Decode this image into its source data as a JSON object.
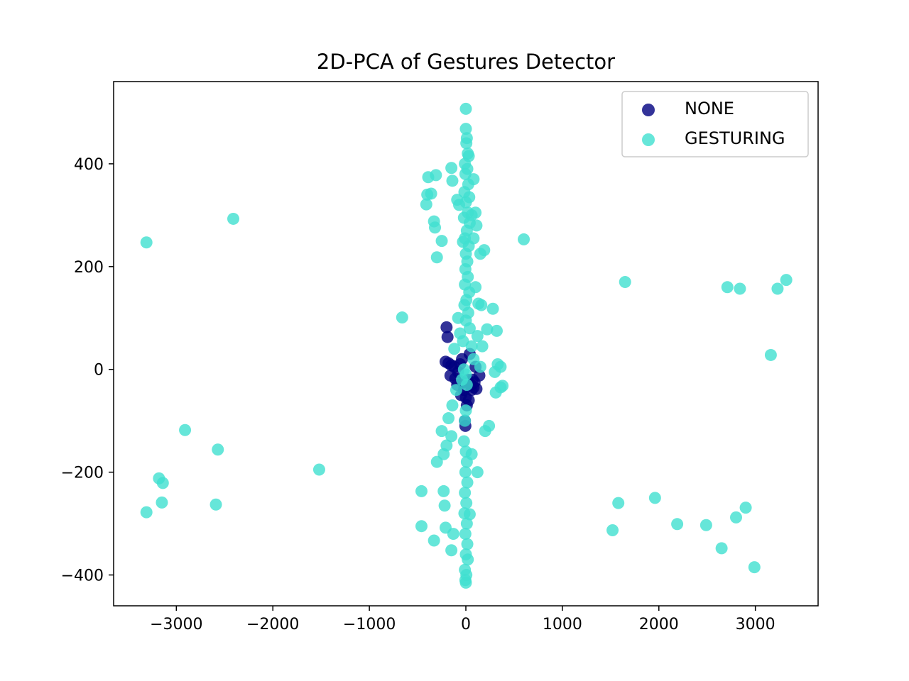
{
  "chart_data": {
    "type": "scatter",
    "title": "2D-PCA of Gestures Detector",
    "xlabel": "",
    "ylabel": "",
    "xlim": [
      -3650,
      3650
    ],
    "ylim": [
      -460,
      560
    ],
    "xticks": [
      -3000,
      -2000,
      -1000,
      0,
      1000,
      2000,
      3000
    ],
    "yticks": [
      -400,
      -200,
      0,
      200,
      400
    ],
    "xtick_labels": [
      "−3000",
      "−2000",
      "−1000",
      "0",
      "1000",
      "2000",
      "3000"
    ],
    "ytick_labels": [
      "−400",
      "−200",
      "0",
      "200",
      "400"
    ],
    "grid": false,
    "legend_position": "top-right",
    "series": [
      {
        "name": "NONE",
        "color": "#000080",
        "points": [
          [
            -200,
            82
          ],
          [
            -190,
            63
          ],
          [
            -210,
            15
          ],
          [
            -180,
            12
          ],
          [
            -150,
            8
          ],
          [
            -120,
            5
          ],
          [
            -160,
            -12
          ],
          [
            -110,
            -18
          ],
          [
            -80,
            -5
          ],
          [
            -60,
            10
          ],
          [
            -40,
            20
          ],
          [
            -30,
            -25
          ],
          [
            -20,
            -40
          ],
          [
            0,
            -55
          ],
          [
            30,
            -60
          ],
          [
            60,
            -40
          ],
          [
            80,
            -35
          ],
          [
            110,
            -38
          ],
          [
            140,
            -12
          ],
          [
            100,
            5
          ],
          [
            70,
            -20
          ],
          [
            -90,
            -30
          ],
          [
            -50,
            -50
          ],
          [
            20,
            -20
          ],
          [
            40,
            30
          ],
          [
            -10,
            -100
          ],
          [
            -5,
            -110
          ],
          [
            10,
            -70
          ],
          [
            50,
            -30
          ],
          [
            90,
            -25
          ]
        ]
      },
      {
        "name": "GESTURING",
        "color": "#40e0d0",
        "points": [
          [
            0,
            507
          ],
          [
            0,
            468
          ],
          [
            10,
            450
          ],
          [
            5,
            440
          ],
          [
            20,
            420
          ],
          [
            30,
            415
          ],
          [
            -10,
            400
          ],
          [
            15,
            390
          ],
          [
            -5,
            380
          ],
          [
            25,
            360
          ],
          [
            -15,
            345
          ],
          [
            35,
            335
          ],
          [
            0,
            325
          ],
          [
            20,
            305
          ],
          [
            -20,
            295
          ],
          [
            40,
            285
          ],
          [
            10,
            270
          ],
          [
            -10,
            255
          ],
          [
            30,
            240
          ],
          [
            0,
            225
          ],
          [
            15,
            210
          ],
          [
            -5,
            195
          ],
          [
            20,
            180
          ],
          [
            -10,
            165
          ],
          [
            35,
            150
          ],
          [
            5,
            135
          ],
          [
            -15,
            125
          ],
          [
            25,
            110
          ],
          [
            0,
            95
          ],
          [
            40,
            80
          ],
          [
            -390,
            374
          ],
          [
            -310,
            378
          ],
          [
            -360,
            342
          ],
          [
            -400,
            340
          ],
          [
            -410,
            321
          ],
          [
            -330,
            288
          ],
          [
            -320,
            276
          ],
          [
            -250,
            250
          ],
          [
            -300,
            218
          ],
          [
            -150,
            392
          ],
          [
            -140,
            367
          ],
          [
            -90,
            330
          ],
          [
            -70,
            320
          ],
          [
            -30,
            248
          ],
          [
            80,
            370
          ],
          [
            60,
            300
          ],
          [
            100,
            305
          ],
          [
            110,
            280
          ],
          [
            80,
            255
          ],
          [
            150,
            225
          ],
          [
            190,
            232
          ],
          [
            130,
            128
          ],
          [
            160,
            125
          ],
          [
            100,
            160
          ],
          [
            280,
            118
          ],
          [
            220,
            78
          ],
          [
            320,
            75
          ],
          [
            330,
            10
          ],
          [
            300,
            -5
          ],
          [
            360,
            5
          ],
          [
            360,
            -35
          ],
          [
            380,
            -32
          ],
          [
            310,
            -45
          ],
          [
            -660,
            101
          ],
          [
            600,
            253
          ],
          [
            -3310,
            247
          ],
          [
            -2410,
            293
          ],
          [
            1650,
            170
          ],
          [
            2710,
            160
          ],
          [
            2840,
            157
          ],
          [
            3230,
            157
          ],
          [
            3320,
            174
          ],
          [
            3160,
            28
          ],
          [
            -2910,
            -118
          ],
          [
            -2570,
            -156
          ],
          [
            -3180,
            -212
          ],
          [
            -3140,
            -221
          ],
          [
            -3150,
            -259
          ],
          [
            -3310,
            -278
          ],
          [
            -2590,
            -263
          ],
          [
            -1520,
            -195
          ],
          [
            1580,
            -260
          ],
          [
            1520,
            -313
          ],
          [
            1960,
            -250
          ],
          [
            2190,
            -301
          ],
          [
            2490,
            -303
          ],
          [
            2650,
            -348
          ],
          [
            2800,
            -288
          ],
          [
            2900,
            -269
          ],
          [
            2990,
            -385
          ],
          [
            -460,
            -237
          ],
          [
            -460,
            -305
          ],
          [
            -330,
            -333
          ],
          [
            -300,
            -180
          ],
          [
            -250,
            -120
          ],
          [
            -230,
            -165
          ],
          [
            -200,
            -148
          ],
          [
            -180,
            -95
          ],
          [
            -150,
            -130
          ],
          [
            -140,
            -70
          ],
          [
            -220,
            -265
          ],
          [
            -210,
            -308
          ],
          [
            -150,
            -352
          ],
          [
            -130,
            -320
          ],
          [
            -230,
            -237
          ],
          [
            200,
            -120
          ],
          [
            240,
            -110
          ],
          [
            120,
            -200
          ],
          [
            60,
            -165
          ],
          [
            40,
            -282
          ],
          [
            -100,
            -40
          ],
          [
            -120,
            40
          ],
          [
            -80,
            100
          ],
          [
            -60,
            70
          ],
          [
            -30,
            55
          ],
          [
            60,
            45
          ],
          [
            120,
            65
          ],
          [
            170,
            45
          ],
          [
            150,
            5
          ],
          [
            80,
            20
          ],
          [
            -40,
            -20
          ],
          [
            -20,
            0
          ],
          [
            0,
            -10
          ],
          [
            10,
            -30
          ],
          [
            0,
            -80
          ],
          [
            -10,
            -100
          ],
          [
            -20,
            -140
          ],
          [
            0,
            -160
          ],
          [
            10,
            -180
          ],
          [
            -5,
            -200
          ],
          [
            15,
            -220
          ],
          [
            -10,
            -240
          ],
          [
            5,
            -260
          ],
          [
            -15,
            -280
          ],
          [
            10,
            -300
          ],
          [
            -5,
            -320
          ],
          [
            15,
            -340
          ],
          [
            0,
            -360
          ],
          [
            20,
            -370
          ],
          [
            -10,
            -390
          ],
          [
            5,
            -400
          ],
          [
            -5,
            -410
          ],
          [
            0,
            -415
          ]
        ]
      }
    ]
  }
}
